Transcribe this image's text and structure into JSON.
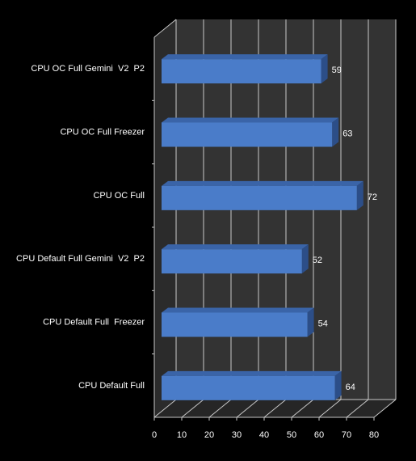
{
  "chart_data": {
    "type": "bar",
    "orientation": "horizontal",
    "style": "3d",
    "categories": [
      "CPU OC Full Gemini  V2  P2",
      "CPU OC Full Freezer",
      "CPU OC Full",
      "CPU Default Full Gemini  V2  P2",
      "CPU Default Full  Freezer",
      "CPU Default Full"
    ],
    "values": [
      59,
      63,
      72,
      52,
      54,
      64
    ],
    "xlim": [
      0,
      80
    ],
    "xticks": [
      0,
      10,
      20,
      30,
      40,
      50,
      60,
      70,
      80
    ],
    "title": "",
    "xlabel": "",
    "ylabel": "",
    "grid": true,
    "legend": "none",
    "colors": {
      "background": "#000000",
      "plot_back": "#333333",
      "plot_floor": "#262626",
      "plot_wall": "#2b2b2b",
      "gridline": "#c8c8c8",
      "bar_front": "#4a7cc9",
      "bar_top": "#3a64a8",
      "bar_side": "#2c4e88",
      "text": "#ffffff"
    }
  }
}
